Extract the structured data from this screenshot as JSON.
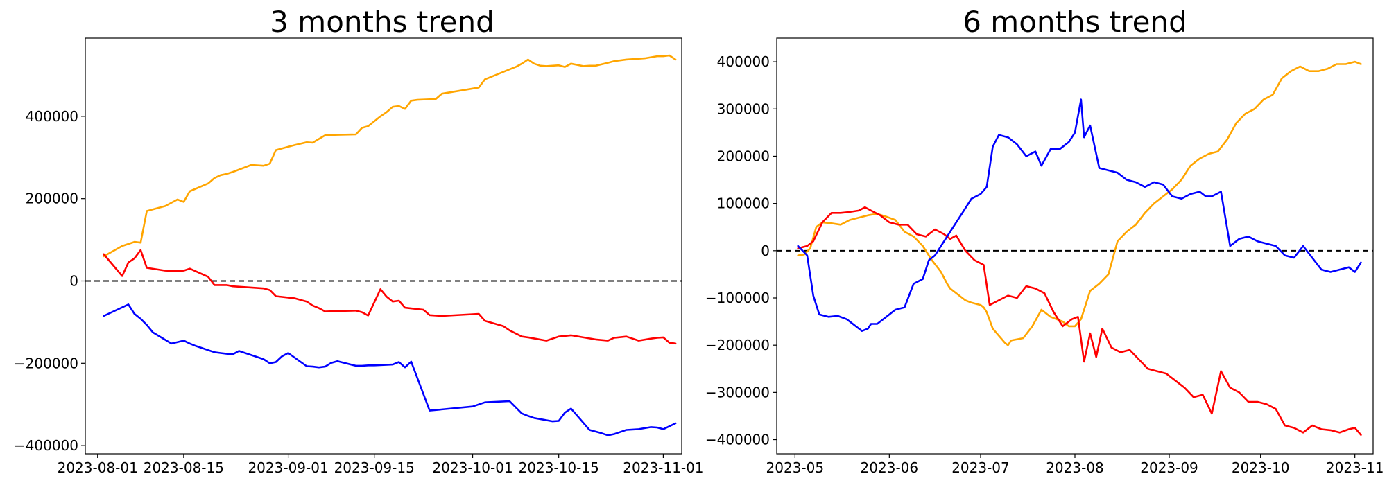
{
  "chart_data": [
    {
      "type": "line",
      "title": "3 months trend",
      "xlabel": "",
      "ylabel": "",
      "x_type": "date",
      "xlim": [
        "2023-07-30",
        "2023-11-04"
      ],
      "ylim": [
        -420000,
        590000
      ],
      "x_ticks": [
        "2023-08-01",
        "2023-08-15",
        "2023-09-01",
        "2023-09-15",
        "2023-10-01",
        "2023-10-15",
        "2023-11-01"
      ],
      "y_ticks": [
        -400000,
        -200000,
        0,
        200000,
        400000
      ],
      "reference_line": {
        "y": 0,
        "style": "dashed",
        "color": "#000000"
      },
      "grid": false,
      "legend": false,
      "series": [
        {
          "color": "#ffa500",
          "x": [
            "2023-08-02",
            "2023-08-05",
            "2023-08-07",
            "2023-08-08",
            "2023-08-09",
            "2023-08-12",
            "2023-08-14",
            "2023-08-15",
            "2023-08-16",
            "2023-08-19",
            "2023-08-20",
            "2023-08-21",
            "2023-08-22",
            "2023-08-23",
            "2023-08-26",
            "2023-08-28",
            "2023-08-29",
            "2023-08-30",
            "2023-09-02",
            "2023-09-04",
            "2023-09-05",
            "2023-09-06",
            "2023-09-07",
            "2023-09-09",
            "2023-09-12",
            "2023-09-13",
            "2023-09-14",
            "2023-09-16",
            "2023-09-17",
            "2023-09-18",
            "2023-09-19",
            "2023-09-20",
            "2023-09-21",
            "2023-09-22",
            "2023-09-25",
            "2023-09-26",
            "2023-09-30",
            "2023-10-02",
            "2023-10-03",
            "2023-10-06",
            "2023-10-07",
            "2023-10-08",
            "2023-10-09",
            "2023-10-10",
            "2023-10-11",
            "2023-10-12",
            "2023-10-13",
            "2023-10-15",
            "2023-10-16",
            "2023-10-17",
            "2023-10-19",
            "2023-10-20",
            "2023-10-21",
            "2023-10-23",
            "2023-10-24",
            "2023-10-26",
            "2023-10-28",
            "2023-10-29",
            "2023-10-31",
            "2023-11-01",
            "2023-11-02",
            "2023-11-03"
          ],
          "y": [
            60000,
            85000,
            95000,
            93000,
            170000,
            182000,
            198000,
            192000,
            218000,
            237000,
            250000,
            257000,
            260000,
            265000,
            282000,
            280000,
            285000,
            318000,
            330000,
            337000,
            336000,
            345000,
            354000,
            355000,
            356000,
            372000,
            376000,
            400000,
            410000,
            423000,
            425000,
            418000,
            438000,
            440000,
            442000,
            455000,
            465000,
            470000,
            490000,
            508000,
            514000,
            520000,
            528000,
            538000,
            528000,
            523000,
            522000,
            524000,
            520000,
            528000,
            522000,
            523000,
            523000,
            530000,
            534000,
            538000,
            540000,
            541000,
            546000,
            546000,
            548000,
            538000
          ]
        },
        {
          "color": "#ff0000",
          "x": [
            "2023-08-02",
            "2023-08-05",
            "2023-08-06",
            "2023-08-07",
            "2023-08-08",
            "2023-08-09",
            "2023-08-12",
            "2023-08-14",
            "2023-08-15",
            "2023-08-16",
            "2023-08-19",
            "2023-08-20",
            "2023-08-21",
            "2023-08-22",
            "2023-08-23",
            "2023-08-28",
            "2023-08-29",
            "2023-08-30",
            "2023-09-02",
            "2023-09-04",
            "2023-09-05",
            "2023-09-06",
            "2023-09-07",
            "2023-09-09",
            "2023-09-12",
            "2023-09-13",
            "2023-09-14",
            "2023-09-16",
            "2023-09-17",
            "2023-09-18",
            "2023-09-19",
            "2023-09-20",
            "2023-09-23",
            "2023-09-24",
            "2023-09-26",
            "2023-10-02",
            "2023-10-03",
            "2023-10-06",
            "2023-10-07",
            "2023-10-09",
            "2023-10-10",
            "2023-10-13",
            "2023-10-15",
            "2023-10-17",
            "2023-10-19",
            "2023-10-21",
            "2023-10-23",
            "2023-10-24",
            "2023-10-26",
            "2023-10-28",
            "2023-10-30",
            "2023-10-31",
            "2023-11-01",
            "2023-11-02",
            "2023-11-03"
          ],
          "y": [
            65000,
            12000,
            45000,
            55000,
            75000,
            32000,
            25000,
            24000,
            25000,
            30000,
            10000,
            -10000,
            -10000,
            -10000,
            -13000,
            -18000,
            -22000,
            -37000,
            -42000,
            -50000,
            -60000,
            -66000,
            -74000,
            -73000,
            -72000,
            -76000,
            -84000,
            -20000,
            -38000,
            -50000,
            -48000,
            -65000,
            -70000,
            -83000,
            -85000,
            -80000,
            -97000,
            -110000,
            -120000,
            -135000,
            -137000,
            -145000,
            -135000,
            -132000,
            -137000,
            -142000,
            -145000,
            -138000,
            -135000,
            -145000,
            -140000,
            -138000,
            -137000,
            -150000,
            -152000
          ]
        },
        {
          "color": "#0000ff",
          "x": [
            "2023-08-02",
            "2023-08-06",
            "2023-08-07",
            "2023-08-08",
            "2023-08-09",
            "2023-08-10",
            "2023-08-13",
            "2023-08-15",
            "2023-08-16",
            "2023-08-17",
            "2023-08-20",
            "2023-08-21",
            "2023-08-22",
            "2023-08-23",
            "2023-08-24",
            "2023-08-28",
            "2023-08-29",
            "2023-08-30",
            "2023-08-31",
            "2023-09-01",
            "2023-09-04",
            "2023-09-05",
            "2023-09-06",
            "2023-09-07",
            "2023-09-08",
            "2023-09-09",
            "2023-09-12",
            "2023-09-13",
            "2023-09-14",
            "2023-09-15",
            "2023-09-18",
            "2023-09-19",
            "2023-09-20",
            "2023-09-21",
            "2023-09-24",
            "2023-10-01",
            "2023-10-02",
            "2023-10-03",
            "2023-10-07",
            "2023-10-09",
            "2023-10-10",
            "2023-10-11",
            "2023-10-14",
            "2023-10-15",
            "2023-10-16",
            "2023-10-17",
            "2023-10-20",
            "2023-10-22",
            "2023-10-23",
            "2023-10-24",
            "2023-10-26",
            "2023-10-28",
            "2023-10-30",
            "2023-10-31",
            "2023-11-01",
            "2023-11-03"
          ],
          "y": [
            -85000,
            -57000,
            -80000,
            -92000,
            -107000,
            -125000,
            -152000,
            -145000,
            -152000,
            -158000,
            -173000,
            -175000,
            -177000,
            -178000,
            -170000,
            -190000,
            -200000,
            -197000,
            -183000,
            -175000,
            -207000,
            -208000,
            -210000,
            -208000,
            -199000,
            -195000,
            -206000,
            -206000,
            -205000,
            -205000,
            -203000,
            -197000,
            -210000,
            -196000,
            -315000,
            -305000,
            -300000,
            -295000,
            -292000,
            -322000,
            -328000,
            -333000,
            -341000,
            -340000,
            -320000,
            -310000,
            -362000,
            -370000,
            -375000,
            -372000,
            -362000,
            -360000,
            -355000,
            -356000,
            -360000,
            -346000
          ]
        }
      ]
    },
    {
      "type": "line",
      "title": "6 months trend",
      "xlabel": "",
      "ylabel": "",
      "x_type": "date",
      "xlim": [
        "2023-04-25",
        "2023-11-07"
      ],
      "ylim": [
        -430000,
        450000
      ],
      "x_ticks": [
        "2023-05",
        "2023-06",
        "2023-07",
        "2023-08",
        "2023-09",
        "2023-10",
        "2023-11"
      ],
      "y_ticks": [
        -400000,
        -300000,
        -200000,
        -100000,
        0,
        100000,
        200000,
        300000,
        400000
      ],
      "reference_line": {
        "y": 0,
        "style": "dashed",
        "color": "#000000"
      },
      "grid": false,
      "legend": false,
      "series": [
        {
          "color": "#ffa500",
          "x": [
            "2023-05-02",
            "2023-05-04",
            "2023-05-06",
            "2023-05-08",
            "2023-05-10",
            "2023-05-13",
            "2023-05-16",
            "2023-05-19",
            "2023-05-22",
            "2023-05-25",
            "2023-05-28",
            "2023-05-31",
            "2023-06-03",
            "2023-06-06",
            "2023-06-09",
            "2023-06-12",
            "2023-06-15",
            "2023-06-18",
            "2023-06-20",
            "2023-06-21",
            "2023-06-24",
            "2023-06-26",
            "2023-06-28",
            "2023-07-01",
            "2023-07-02",
            "2023-07-03",
            "2023-07-05",
            "2023-07-09",
            "2023-07-10",
            "2023-07-11",
            "2023-07-15",
            "2023-07-18",
            "2023-07-21",
            "2023-07-24",
            "2023-07-28",
            "2023-07-30",
            "2023-08-01",
            "2023-08-03",
            "2023-08-06",
            "2023-08-09",
            "2023-08-12",
            "2023-08-15",
            "2023-08-18",
            "2023-08-21",
            "2023-08-24",
            "2023-08-27",
            "2023-08-30",
            "2023-09-02",
            "2023-09-05",
            "2023-09-08",
            "2023-09-11",
            "2023-09-14",
            "2023-09-17",
            "2023-09-20",
            "2023-09-23",
            "2023-09-26",
            "2023-09-29",
            "2023-10-02",
            "2023-10-05",
            "2023-10-08",
            "2023-10-11",
            "2023-10-14",
            "2023-10-17",
            "2023-10-20",
            "2023-10-23",
            "2023-10-26",
            "2023-10-29",
            "2023-11-01",
            "2023-11-03"
          ],
          "y": [
            -10000,
            -8000,
            5000,
            50000,
            60000,
            58000,
            55000,
            65000,
            70000,
            75000,
            78000,
            72000,
            65000,
            40000,
            30000,
            10000,
            -20000,
            -45000,
            -70000,
            -80000,
            -95000,
            -105000,
            -110000,
            -115000,
            -120000,
            -130000,
            -165000,
            -195000,
            -200000,
            -190000,
            -185000,
            -160000,
            -125000,
            -140000,
            -150000,
            -160000,
            -160000,
            -145000,
            -85000,
            -70000,
            -50000,
            20000,
            40000,
            55000,
            80000,
            100000,
            115000,
            130000,
            150000,
            180000,
            195000,
            205000,
            210000,
            235000,
            270000,
            290000,
            300000,
            320000,
            330000,
            365000,
            380000,
            390000,
            380000,
            380000,
            385000,
            395000,
            395000,
            400000,
            395000
          ]
        },
        {
          "color": "#ff0000",
          "x": [
            "2023-05-02",
            "2023-05-05",
            "2023-05-07",
            "2023-05-10",
            "2023-05-13",
            "2023-05-16",
            "2023-05-19",
            "2023-05-22",
            "2023-05-24",
            "2023-05-26",
            "2023-05-29",
            "2023-06-01",
            "2023-06-04",
            "2023-06-07",
            "2023-06-10",
            "2023-06-13",
            "2023-06-16",
            "2023-06-19",
            "2023-06-21",
            "2023-06-23",
            "2023-06-26",
            "2023-06-29",
            "2023-07-02",
            "2023-07-04",
            "2023-07-07",
            "2023-07-10",
            "2023-07-13",
            "2023-07-16",
            "2023-07-19",
            "2023-07-22",
            "2023-07-25",
            "2023-07-28",
            "2023-07-31",
            "2023-08-02",
            "2023-08-04",
            "2023-08-06",
            "2023-08-08",
            "2023-08-10",
            "2023-08-13",
            "2023-08-16",
            "2023-08-19",
            "2023-08-22",
            "2023-08-25",
            "2023-08-28",
            "2023-08-31",
            "2023-09-03",
            "2023-09-06",
            "2023-09-09",
            "2023-09-12",
            "2023-09-15",
            "2023-09-18",
            "2023-09-21",
            "2023-09-24",
            "2023-09-27",
            "2023-09-30",
            "2023-10-03",
            "2023-10-06",
            "2023-10-09",
            "2023-10-12",
            "2023-10-15",
            "2023-10-18",
            "2023-10-21",
            "2023-10-24",
            "2023-10-27",
            "2023-10-30",
            "2023-11-01",
            "2023-11-03"
          ],
          "y": [
            5000,
            10000,
            20000,
            60000,
            80000,
            80000,
            82000,
            85000,
            92000,
            85000,
            75000,
            60000,
            55000,
            55000,
            35000,
            30000,
            45000,
            35000,
            25000,
            32000,
            0,
            -20000,
            -30000,
            -115000,
            -105000,
            -95000,
            -100000,
            -75000,
            -80000,
            -90000,
            -130000,
            -160000,
            -145000,
            -140000,
            -235000,
            -175000,
            -225000,
            -165000,
            -205000,
            -215000,
            -210000,
            -230000,
            -250000,
            -255000,
            -260000,
            -275000,
            -290000,
            -310000,
            -305000,
            -345000,
            -255000,
            -290000,
            -300000,
            -320000,
            -320000,
            -325000,
            -335000,
            -370000,
            -375000,
            -385000,
            -370000,
            -378000,
            -380000,
            -385000,
            -378000,
            -375000,
            -390000
          ]
        },
        {
          "color": "#0000ff",
          "x": [
            "2023-05-02",
            "2023-05-05",
            "2023-05-07",
            "2023-05-09",
            "2023-05-12",
            "2023-05-15",
            "2023-05-18",
            "2023-05-21",
            "2023-05-23",
            "2023-05-25",
            "2023-05-26",
            "2023-05-28",
            "2023-05-31",
            "2023-06-03",
            "2023-06-06",
            "2023-06-09",
            "2023-06-12",
            "2023-06-14",
            "2023-06-16",
            "2023-06-19",
            "2023-06-22",
            "2023-06-25",
            "2023-06-28",
            "2023-07-01",
            "2023-07-03",
            "2023-07-05",
            "2023-07-07",
            "2023-07-10",
            "2023-07-13",
            "2023-07-16",
            "2023-07-19",
            "2023-07-21",
            "2023-07-24",
            "2023-07-27",
            "2023-07-30",
            "2023-08-01",
            "2023-08-03",
            "2023-08-04",
            "2023-08-06",
            "2023-08-09",
            "2023-08-12",
            "2023-08-15",
            "2023-08-18",
            "2023-08-21",
            "2023-08-24",
            "2023-08-27",
            "2023-08-30",
            "2023-09-02",
            "2023-09-05",
            "2023-09-08",
            "2023-09-11",
            "2023-09-13",
            "2023-09-15",
            "2023-09-18",
            "2023-09-21",
            "2023-09-24",
            "2023-09-27",
            "2023-09-30",
            "2023-10-03",
            "2023-10-06",
            "2023-10-09",
            "2023-10-12",
            "2023-10-15",
            "2023-10-18",
            "2023-10-21",
            "2023-10-24",
            "2023-10-27",
            "2023-10-30",
            "2023-11-01",
            "2023-11-03"
          ],
          "y": [
            10000,
            -10000,
            -95000,
            -135000,
            -140000,
            -138000,
            -145000,
            -160000,
            -170000,
            -165000,
            -155000,
            -155000,
            -140000,
            -125000,
            -120000,
            -70000,
            -60000,
            -20000,
            -10000,
            20000,
            50000,
            80000,
            110000,
            120000,
            135000,
            220000,
            245000,
            240000,
            225000,
            200000,
            210000,
            180000,
            215000,
            215000,
            230000,
            250000,
            320000,
            240000,
            265000,
            175000,
            170000,
            165000,
            150000,
            145000,
            135000,
            145000,
            140000,
            115000,
            110000,
            120000,
            125000,
            115000,
            115000,
            125000,
            10000,
            25000,
            30000,
            20000,
            15000,
            10000,
            -10000,
            -15000,
            10000,
            -15000,
            -40000,
            -45000,
            -40000,
            -35000,
            -45000,
            -25000
          ]
        }
      ]
    }
  ]
}
